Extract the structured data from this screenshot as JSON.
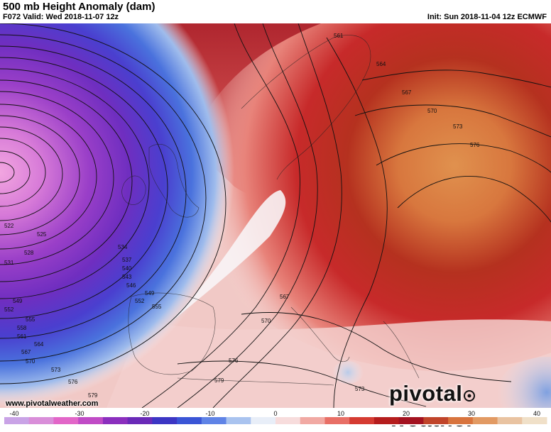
{
  "header": {
    "title": "500 mb Height Anomaly (dam)",
    "valid": "F072 Valid: Wed 2018-11-07 12z",
    "init": "Init: Sun 2018-11-04 12z ECMWF"
  },
  "map": {
    "contour_labels": [
      "522",
      "525",
      "528",
      "531",
      "534",
      "537",
      "540",
      "543",
      "546",
      "549",
      "552",
      "555",
      "558",
      "561",
      "564",
      "567",
      "570",
      "573",
      "576",
      "579"
    ],
    "low_center_label": "549",
    "east_labels": [
      "561",
      "564",
      "567",
      "570",
      "573",
      "576"
    ],
    "med_labels": [
      "567",
      "570",
      "576",
      "579",
      "573"
    ]
  },
  "watermark": {
    "website": "www.pivotalweather.com",
    "brand_left": "pivotal",
    "brand_right": "weather"
  },
  "colorbar": {
    "ticks": [
      "-40",
      "-30",
      "-20",
      "-10",
      "0",
      "10",
      "20",
      "30",
      "40"
    ],
    "colors": [
      "#c9a3e6",
      "#d98ed9",
      "#e266c8",
      "#c04bc6",
      "#8b2fbe",
      "#6a2ab8",
      "#3c36c4",
      "#3a55d6",
      "#5f83e6",
      "#a9c3ef",
      "#e8eef8",
      "#f7dcdc",
      "#f1a9a3",
      "#e86f66",
      "#d53b32",
      "#b51d1d",
      "#a31220",
      "#c0442a",
      "#d8743e",
      "#e29a63",
      "#e9c3a1",
      "#f0e0c8"
    ]
  }
}
